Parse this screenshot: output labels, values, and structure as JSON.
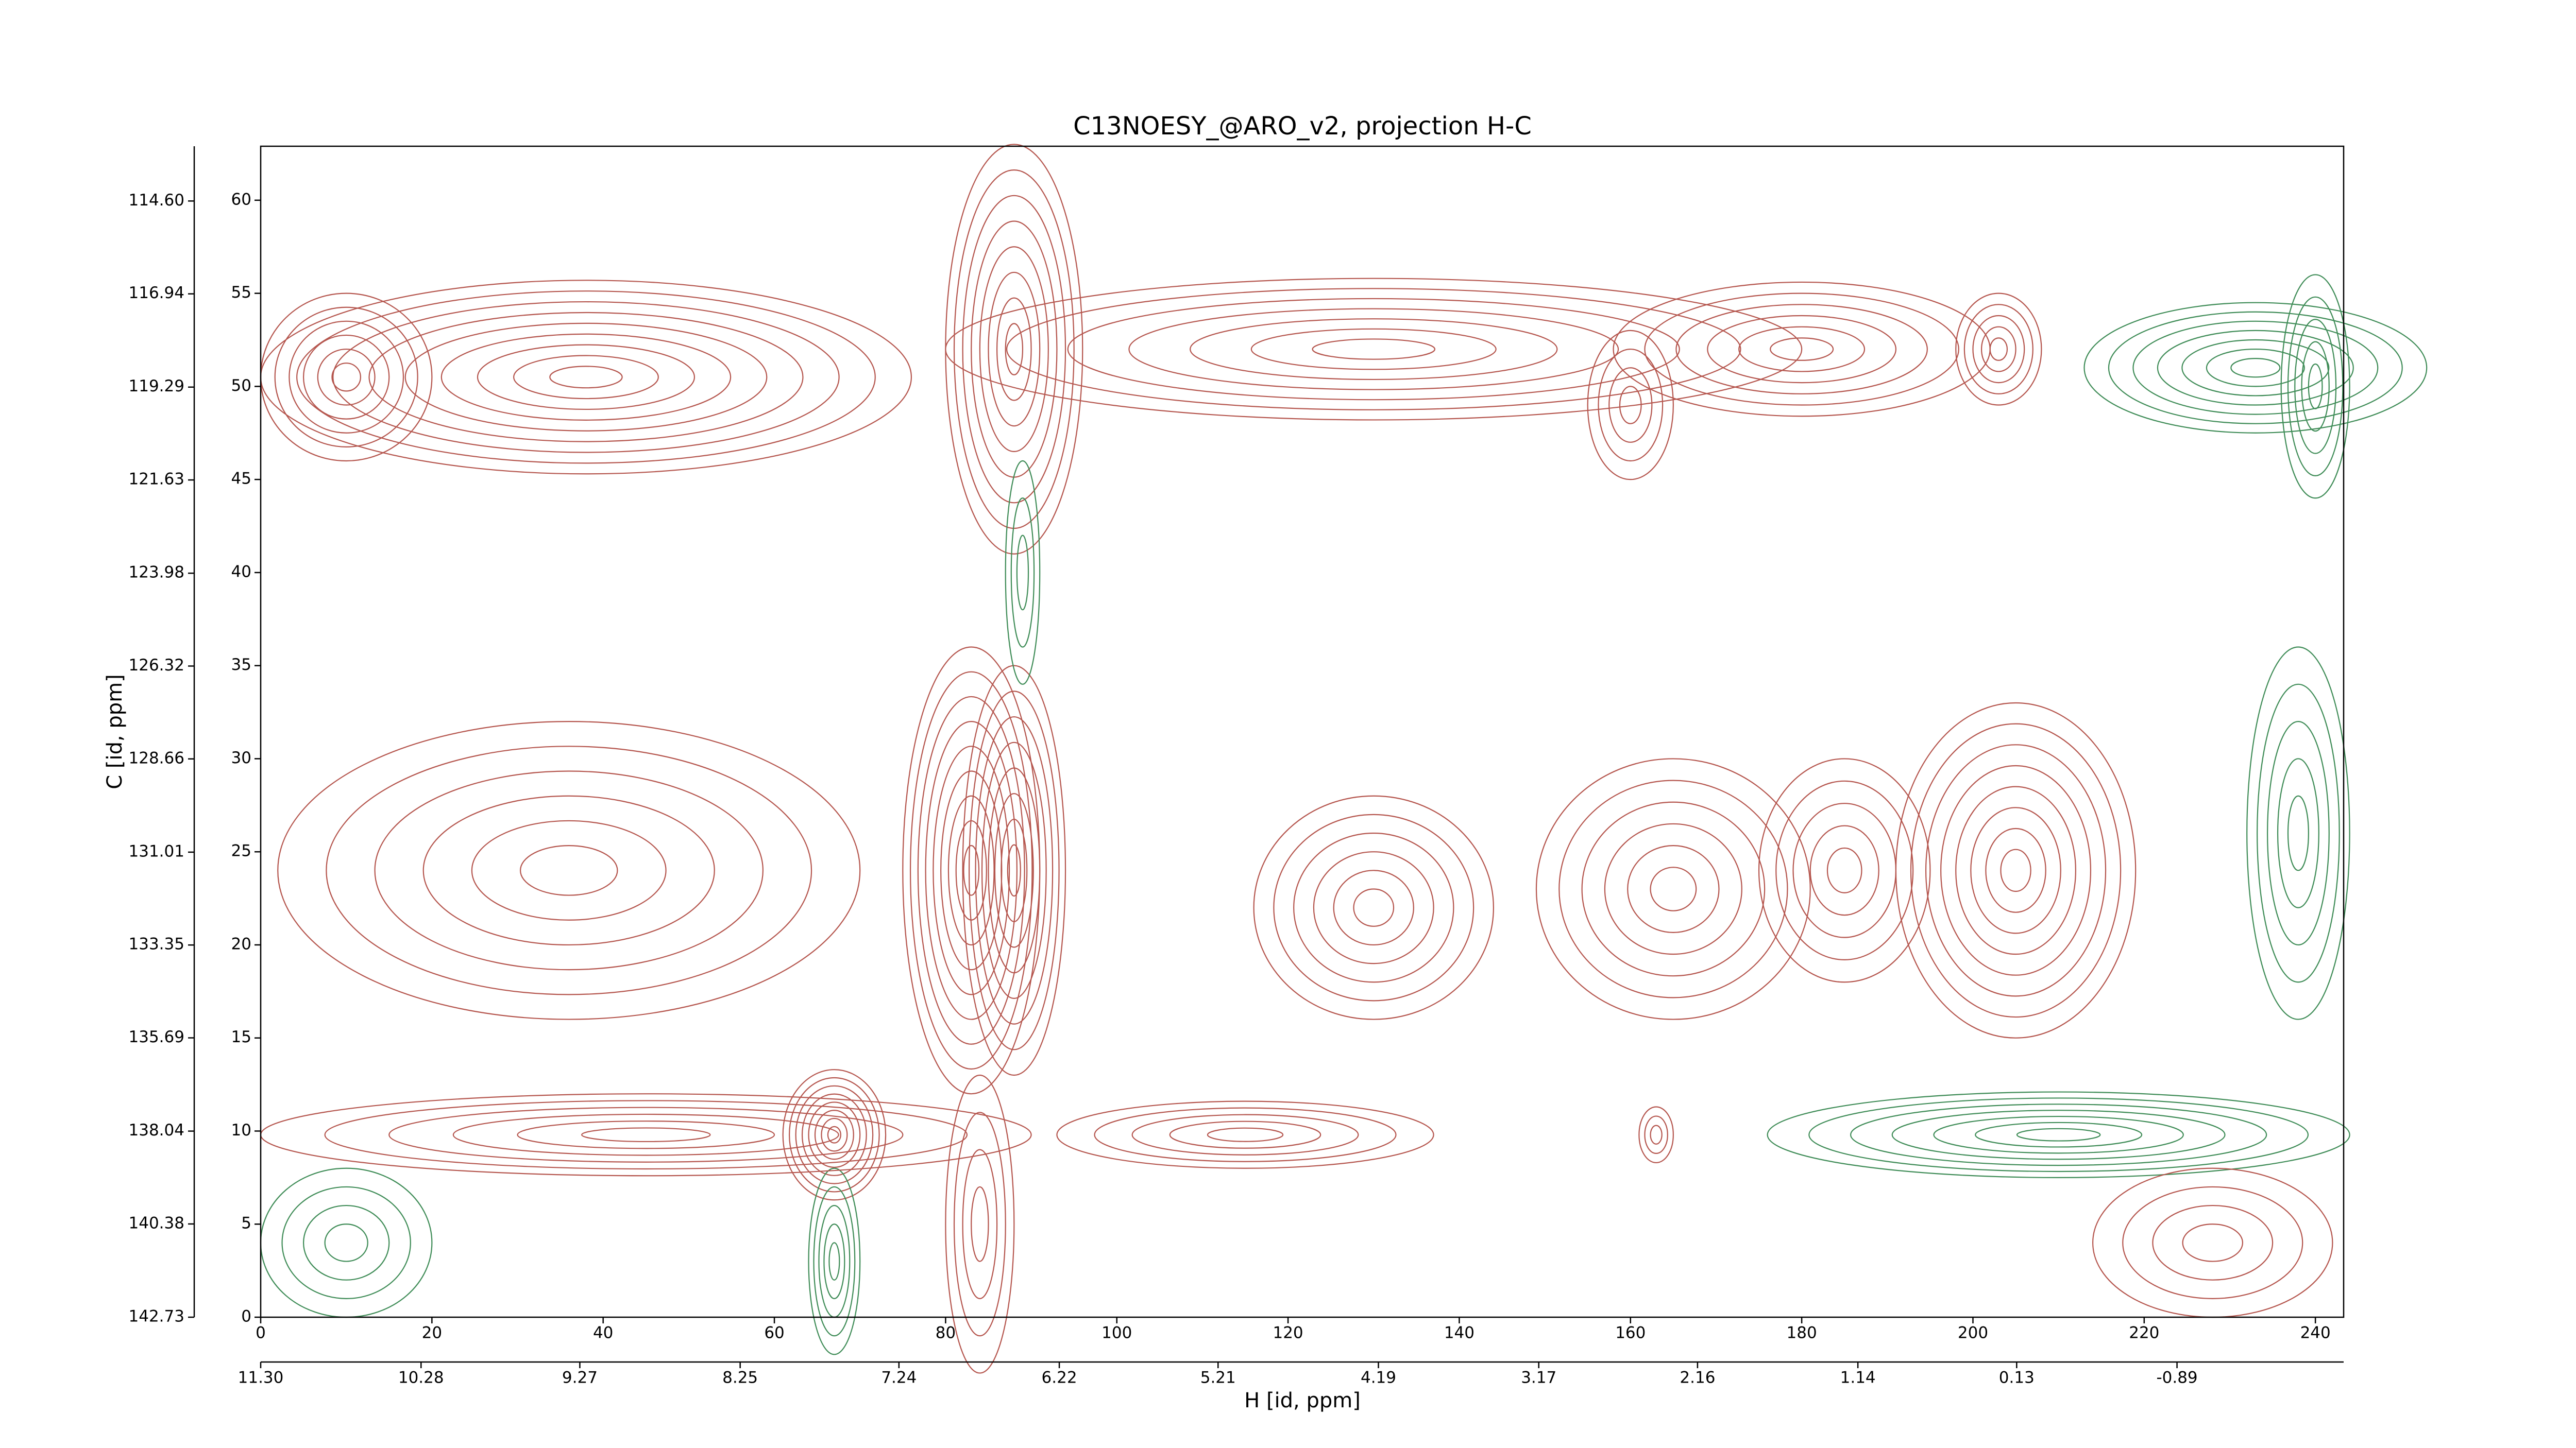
{
  "chart_data": {
    "type": "contour",
    "title": "C13NOESY_@ARO_v2, projection H-C",
    "xlabel": "H [id, ppm]",
    "ylabel": "C [id, ppm]",
    "xlim": [
      0,
      243.3
    ],
    "xticks": [
      0,
      20,
      40,
      60,
      80,
      100,
      120,
      140,
      160,
      180,
      200,
      220,
      240
    ],
    "x2lim": [
      11.3,
      -1.95
    ],
    "x2ticks": [
      {
        "value": 11.3,
        "label": "11.30"
      },
      10.28,
      9.27,
      8.25,
      7.24,
      6.22,
      5.21,
      4.19,
      3.17,
      2.16,
      1.14,
      0.13,
      -0.89
    ],
    "ylim": [
      0,
      62.9
    ],
    "yticks": [
      0,
      5,
      10,
      15,
      20,
      25,
      30,
      35,
      40,
      45,
      50,
      55,
      60
    ],
    "y2lim": [
      142.73,
      113.22
    ],
    "y2ticks": [
      {
        "value": 114.6,
        "label": "114.60"
      },
      116.94,
      119.29,
      121.63,
      123.98,
      126.32,
      128.66,
      131.01,
      133.35,
      135.69,
      138.04,
      140.38,
      142.73
    ],
    "positive_color": "#b5564e",
    "negative_color": "#3f8c57"
  }
}
